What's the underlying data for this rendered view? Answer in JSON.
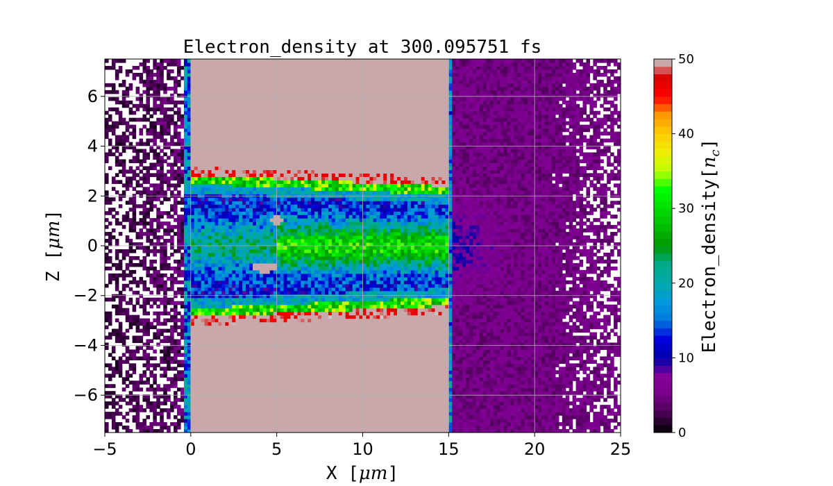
{
  "chart_data": {
    "type": "heatmap",
    "title": "Electron_density at 300.095751 fs",
    "xlabel": "X  [",
    "xlabel_unit": "μm",
    "xlabel_close": "]",
    "ylabel": "Z  [",
    "ylabel_unit": "μm",
    "ylabel_close": "]",
    "xlim": [
      -5,
      25
    ],
    "ylim": [
      -7.5,
      7.5
    ],
    "x_ticks": [
      -5,
      0,
      5,
      10,
      15,
      20,
      25
    ],
    "x_tick_labels": [
      "−5",
      "0",
      "5",
      "10",
      "15",
      "20",
      "25"
    ],
    "y_ticks": [
      -6,
      -4,
      -2,
      0,
      2,
      4,
      6
    ],
    "y_tick_labels": [
      "−6",
      "−4",
      "−2",
      "0",
      "2",
      "4",
      "6"
    ],
    "grid": true,
    "colorbar": {
      "label": "Electron_density[",
      "label_var": "n",
      "label_sub": "c",
      "label_close": "]",
      "range": [
        0,
        50
      ],
      "ticks": [
        0,
        10,
        20,
        30,
        40,
        50
      ],
      "tick_labels": [
        "0",
        "10",
        "20",
        "30",
        "40",
        "50"
      ],
      "levels": 50,
      "colormap": "nipy_spectral",
      "over_color": "#c8a8aa"
    },
    "regions": [
      {
        "name": "upper target block",
        "x": [
          0,
          15
        ],
        "z": [
          2.5,
          7.5
        ],
        "density": "50+"
      },
      {
        "name": "lower target block",
        "x": [
          0,
          15
        ],
        "z": [
          -7.5,
          -2.5
        ],
        "density": "50+"
      },
      {
        "name": "channel plasma",
        "x": [
          0,
          15
        ],
        "z": [
          -2.5,
          2.5
        ],
        "density": [
          5,
          30
        ]
      },
      {
        "name": "upper blob",
        "x": [
          4.5,
          5.5
        ],
        "z": [
          0.8,
          1.4
        ],
        "density": "50+"
      },
      {
        "name": "lower blob",
        "x": [
          3.5,
          5.2
        ],
        "z": [
          -1.3,
          -0.5
        ],
        "density": "50+"
      }
    ]
  }
}
